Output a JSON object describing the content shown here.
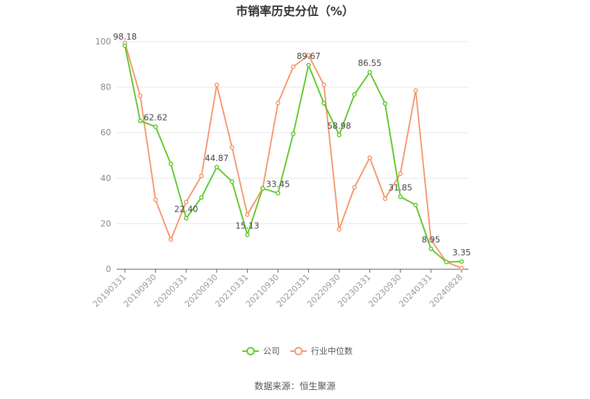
{
  "chart_data": {
    "type": "line",
    "title": "市销率历史分位（%）",
    "source": "数据来源：恒生聚源",
    "ylim": [
      0,
      100
    ],
    "yticks": [
      0,
      20,
      40,
      60,
      80,
      100
    ],
    "x_tick_labels": [
      "20190331",
      "20190930",
      "20200331",
      "20200930",
      "20210331",
      "20210930",
      "20220331",
      "20220930",
      "20230331",
      "20230930",
      "20240331",
      "20240828"
    ],
    "grid": true,
    "legend_position": "bottom",
    "x": [
      "20190331",
      "20190630",
      "20190930",
      "20191231",
      "20200331",
      "20200630",
      "20200930",
      "20201231",
      "20210331",
      "20210630",
      "20210930",
      "20211231",
      "20220331",
      "20220630",
      "20220930",
      "20221231",
      "20230331",
      "20230630",
      "20230930",
      "20231231",
      "20240331",
      "20240630",
      "20240828"
    ],
    "series": [
      {
        "name": "公司",
        "color": "#5ac725",
        "values": [
          98.18,
          65.2,
          62.62,
          46.3,
          22.4,
          31.5,
          44.87,
          38.5,
          15.13,
          35.5,
          33.45,
          59.5,
          89.67,
          73.0,
          58.98,
          76.8,
          86.55,
          72.8,
          31.85,
          28.2,
          8.95,
          3.2,
          3.35
        ],
        "labels": {
          "0": "98.18",
          "2": "62.62",
          "4": "22.40",
          "6": "44.87",
          "8": "15.13",
          "10": "33.45",
          "12": "89.67",
          "14": "58.98",
          "16": "86.55",
          "18": "31.85",
          "20": "8.95",
          "22": "3.35"
        }
      },
      {
        "name": "行业中位数",
        "color": "#f4956a",
        "values": [
          99.5,
          76.2,
          30.5,
          13.0,
          29.5,
          41.0,
          81.0,
          53.5,
          24.0,
          35.5,
          73.0,
          89.0,
          94.0,
          81.0,
          17.5,
          36.0,
          49.0,
          31.0,
          42.0,
          78.5,
          13.0,
          3.2,
          0.5
        ]
      }
    ]
  }
}
